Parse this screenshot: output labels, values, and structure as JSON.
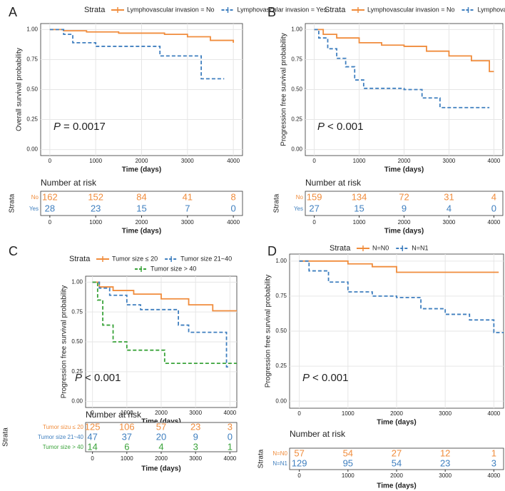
{
  "chart_data": [
    {
      "type": "step",
      "panel": "A",
      "legend_title": "Strata",
      "series": [
        {
          "name": "Lymphovascular invasion = No",
          "color": "#f08c3c",
          "x": [
            0,
            300,
            800,
            1500,
            2500,
            3000,
            3500,
            4000
          ],
          "values": [
            1,
            0.99,
            0.98,
            0.97,
            0.96,
            0.94,
            0.91,
            0.89
          ]
        },
        {
          "name": "Lymphovascular invasion = Yes",
          "color": "#3f7fbf",
          "x": [
            0,
            300,
            500,
            1000,
            2400,
            3300,
            3800
          ],
          "values": [
            1,
            0.96,
            0.89,
            0.86,
            0.78,
            0.59,
            0.59
          ]
        }
      ],
      "xlabel": "Time (days)",
      "ylabel": "Overall survival probability",
      "xlim": [
        -200,
        4200
      ],
      "ylim": [
        -0.05,
        1.05
      ],
      "xticks": [
        0,
        1000,
        2000,
        3000,
        4000
      ],
      "yticks": [
        {
          "value": 0,
          "label": "0.00"
        },
        {
          "value": 0.25,
          "label": "0.25"
        },
        {
          "value": 0.5,
          "label": "0.50"
        },
        {
          "value": 0.75,
          "label": "0.75"
        },
        {
          "value": 1,
          "label": "1.00"
        }
      ],
      "p_label": "P",
      "p_text": "= 0.0017",
      "risk_table": {
        "title": "Number at risk",
        "ylabel": "Strata",
        "xlabel": "Time (days)",
        "times": [
          0,
          1000,
          2000,
          3000,
          4000
        ],
        "rows": [
          {
            "label": "No",
            "values": [
              162,
              152,
              84,
              41,
              8
            ]
          },
          {
            "label": "Yes",
            "values": [
              28,
              23,
              15,
              7,
              0
            ]
          }
        ]
      }
    },
    {
      "type": "step",
      "panel": "B",
      "legend_title": "Strata",
      "series": [
        {
          "name": "Lymphovascular invasion = No",
          "color": "#f08c3c",
          "x": [
            0,
            200,
            500,
            1000,
            1500,
            2000,
            2500,
            3000,
            3500,
            3900,
            4000
          ],
          "values": [
            1,
            0.96,
            0.93,
            0.89,
            0.87,
            0.86,
            0.82,
            0.78,
            0.74,
            0.65,
            0.65
          ]
        },
        {
          "name": "Lymphovascular invasion = Yes",
          "color": "#3f7fbf",
          "x": [
            0,
            100,
            300,
            500,
            700,
            900,
            1100,
            2000,
            2400,
            2800,
            3900
          ],
          "values": [
            1,
            0.93,
            0.84,
            0.76,
            0.69,
            0.58,
            0.51,
            0.5,
            0.43,
            0.35,
            0.35
          ]
        }
      ],
      "xlabel": "Time (days)",
      "ylabel": "Progression free survival probability",
      "xlim": [
        -200,
        4200
      ],
      "ylim": [
        -0.05,
        1.05
      ],
      "xticks": [
        0,
        1000,
        2000,
        3000,
        4000
      ],
      "yticks": [
        {
          "value": 0,
          "label": "0.00"
        },
        {
          "value": 0.25,
          "label": "0.25"
        },
        {
          "value": 0.5,
          "label": "0.50"
        },
        {
          "value": 0.75,
          "label": "0.75"
        },
        {
          "value": 1,
          "label": "1.00"
        }
      ],
      "p_label": "P",
      "p_text": "< 0.001",
      "risk_table": {
        "title": "Number at risk",
        "ylabel": "Strata",
        "xlabel": "Time (days)",
        "times": [
          0,
          1000,
          2000,
          3000,
          4000
        ],
        "rows": [
          {
            "label": "No",
            "values": [
              159,
              134,
              72,
              31,
              4
            ]
          },
          {
            "label": "Yes",
            "values": [
              27,
              15,
              9,
              4,
              0
            ]
          }
        ]
      }
    },
    {
      "type": "step",
      "panel": "C",
      "legend_title": "Strata",
      "series": [
        {
          "name": "Tumor size ≤ 20",
          "color": "#f08c3c",
          "x": [
            0,
            200,
            600,
            1200,
            2000,
            2800,
            3500,
            4200
          ],
          "values": [
            1,
            0.96,
            0.93,
            0.9,
            0.86,
            0.81,
            0.76,
            0.76
          ]
        },
        {
          "name": "Tumor size 21~40",
          "color": "#3f7fbf",
          "x": [
            0,
            200,
            500,
            1000,
            1400,
            2000,
            2500,
            2800,
            3500,
            3900,
            4000
          ],
          "values": [
            1,
            0.95,
            0.89,
            0.81,
            0.77,
            0.77,
            0.64,
            0.58,
            0.58,
            0.29,
            0.29
          ]
        },
        {
          "name": "Tumor size > 40",
          "color": "#3aa33a",
          "x": [
            0,
            150,
            300,
            600,
            1000,
            2100,
            4200
          ],
          "values": [
            1,
            0.85,
            0.64,
            0.5,
            0.43,
            0.32,
            0.32
          ]
        }
      ],
      "xlabel": "Time (days)",
      "ylabel": "Progression free survival probability",
      "xlim": [
        -200,
        4200
      ],
      "ylim": [
        -0.05,
        1.05
      ],
      "xticks": [
        0,
        1000,
        2000,
        3000,
        4000
      ],
      "yticks": [
        {
          "value": 0,
          "label": "0.00"
        },
        {
          "value": 0.25,
          "label": "0.25"
        },
        {
          "value": 0.5,
          "label": "0.50"
        },
        {
          "value": 0.75,
          "label": "0.75"
        },
        {
          "value": 1,
          "label": "1.00"
        }
      ],
      "p_label": "P",
      "p_text": "< 0.001",
      "risk_table": {
        "title": "Number at risk",
        "ylabel": "Strata",
        "xlabel": "Time (days)",
        "times": [
          0,
          1000,
          2000,
          3000,
          4000
        ],
        "rows": [
          {
            "label": "Tumor sizu ≤ 20",
            "values": [
              125,
              106,
              57,
              23,
              3
            ]
          },
          {
            "label": "Tumor size 21~40",
            "values": [
              47,
              37,
              20,
              9,
              0
            ]
          },
          {
            "label": "Tumor size > 40",
            "values": [
              14,
              6,
              4,
              3,
              1
            ]
          }
        ]
      }
    },
    {
      "type": "step",
      "panel": "D",
      "legend_title": "Strata",
      "series": [
        {
          "name": "N=N0",
          "color": "#f08c3c",
          "x": [
            0,
            1000,
            1500,
            2000,
            4100
          ],
          "values": [
            1,
            0.98,
            0.96,
            0.92,
            0.92
          ]
        },
        {
          "name": "N=N1",
          "color": "#3f7fbf",
          "x": [
            0,
            200,
            600,
            1000,
            1500,
            2000,
            2500,
            3000,
            3500,
            4000,
            4200
          ],
          "values": [
            1,
            0.93,
            0.85,
            0.78,
            0.75,
            0.74,
            0.66,
            0.62,
            0.58,
            0.49,
            0.49
          ]
        }
      ],
      "xlabel": "Time (days)",
      "ylabel": "Progression free survival probability",
      "xlim": [
        -200,
        4200
      ],
      "ylim": [
        -0.05,
        1.05
      ],
      "xticks": [
        0,
        1000,
        2000,
        3000,
        4000
      ],
      "yticks": [
        {
          "value": 0,
          "label": "0.00"
        },
        {
          "value": 0.25,
          "label": "0.25"
        },
        {
          "value": 0.5,
          "label": "0.50"
        },
        {
          "value": 0.75,
          "label": "0.75"
        },
        {
          "value": 1,
          "label": "1.00"
        }
      ],
      "p_label": "P",
      "p_text": "< 0.001",
      "risk_table": {
        "title": "Number at risk",
        "ylabel": "Strata",
        "xlabel": "Time (days)",
        "times": [
          0,
          1000,
          2000,
          3000,
          4000
        ],
        "rows": [
          {
            "label": "N=N0",
            "values": [
              57,
              54,
              27,
              12,
              1
            ]
          },
          {
            "label": "N=N1",
            "values": [
              129,
              95,
              54,
              23,
              3
            ]
          }
        ]
      }
    }
  ]
}
